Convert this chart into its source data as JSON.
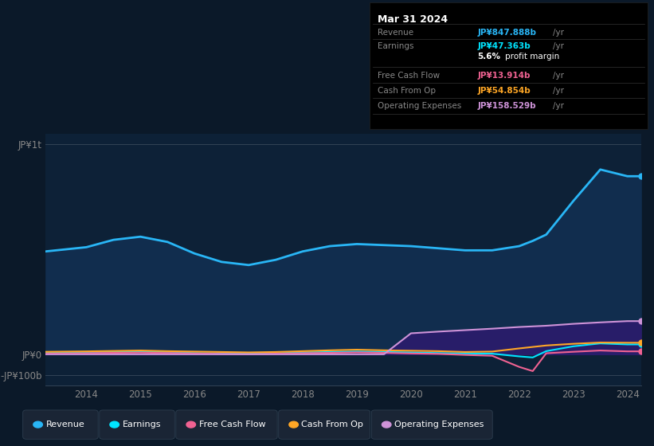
{
  "bg_color": "#0b1929",
  "plot_bg_color": "#0d2137",
  "title": "Mar 31 2024",
  "years": [
    2013.25,
    2014.0,
    2014.5,
    2015.0,
    2015.5,
    2016.0,
    2016.5,
    2017.0,
    2017.5,
    2018.0,
    2018.5,
    2019.0,
    2019.5,
    2020.0,
    2020.5,
    2021.0,
    2021.5,
    2022.0,
    2022.25,
    2022.5,
    2023.0,
    2023.5,
    2024.0,
    2024.25
  ],
  "revenue": [
    490,
    510,
    545,
    560,
    535,
    480,
    440,
    425,
    450,
    490,
    515,
    525,
    520,
    515,
    505,
    495,
    495,
    515,
    540,
    570,
    730,
    880,
    848,
    848
  ],
  "earnings": [
    8,
    10,
    12,
    14,
    10,
    6,
    4,
    3,
    5,
    9,
    11,
    13,
    11,
    9,
    6,
    4,
    3,
    -10,
    -15,
    15,
    38,
    52,
    47,
    47
  ],
  "free_cash_flow": [
    3,
    5,
    7,
    8,
    6,
    4,
    2,
    1,
    3,
    5,
    7,
    9,
    7,
    4,
    2,
    -3,
    -7,
    -60,
    -80,
    5,
    12,
    18,
    14,
    14
  ],
  "cash_from_op": [
    12,
    14,
    16,
    18,
    15,
    13,
    11,
    9,
    11,
    15,
    19,
    22,
    19,
    17,
    15,
    11,
    13,
    28,
    35,
    42,
    50,
    56,
    55,
    55
  ],
  "operating_expenses": [
    0,
    0,
    0,
    0,
    0,
    0,
    0,
    0,
    0,
    0,
    0,
    0,
    0,
    100,
    108,
    115,
    122,
    130,
    133,
    136,
    145,
    152,
    158,
    158
  ],
  "revenue_color": "#29b6f6",
  "earnings_color": "#00e5ff",
  "free_cash_flow_color": "#f06292",
  "cash_from_op_color": "#ffa726",
  "operating_expenses_color": "#ce93d8",
  "revenue_fill_color": "#112d4e",
  "operating_expenses_fill_color": "#2d1b6e",
  "ylim_min": -150,
  "ylim_max": 1050,
  "yticks": [
    -100,
    0,
    1000
  ],
  "ytick_labels": [
    "-JP¥100b",
    "JP¥0",
    "JP¥1t"
  ],
  "xticks": [
    2014,
    2015,
    2016,
    2017,
    2018,
    2019,
    2020,
    2021,
    2022,
    2023,
    2024
  ],
  "info_rows": [
    {
      "label": "Revenue",
      "value": "JP¥847.888b",
      "color": "#29b6f6"
    },
    {
      "label": "Earnings",
      "value": "JP¥47.363b",
      "color": "#00e5ff"
    },
    {
      "label": "",
      "value": "5.6% profit margin",
      "color": "#ffffff"
    },
    {
      "label": "Free Cash Flow",
      "value": "JP¥13.914b",
      "color": "#f06292"
    },
    {
      "label": "Cash From Op",
      "value": "JP¥54.854b",
      "color": "#ffa726"
    },
    {
      "label": "Operating Expenses",
      "value": "JP¥158.529b",
      "color": "#ce93d8"
    }
  ],
  "legend_items": [
    {
      "label": "Revenue",
      "color": "#29b6f6"
    },
    {
      "label": "Earnings",
      "color": "#00e5ff"
    },
    {
      "label": "Free Cash Flow",
      "color": "#f06292"
    },
    {
      "label": "Cash From Op",
      "color": "#ffa726"
    },
    {
      "label": "Operating Expenses",
      "color": "#ce93d8"
    }
  ]
}
